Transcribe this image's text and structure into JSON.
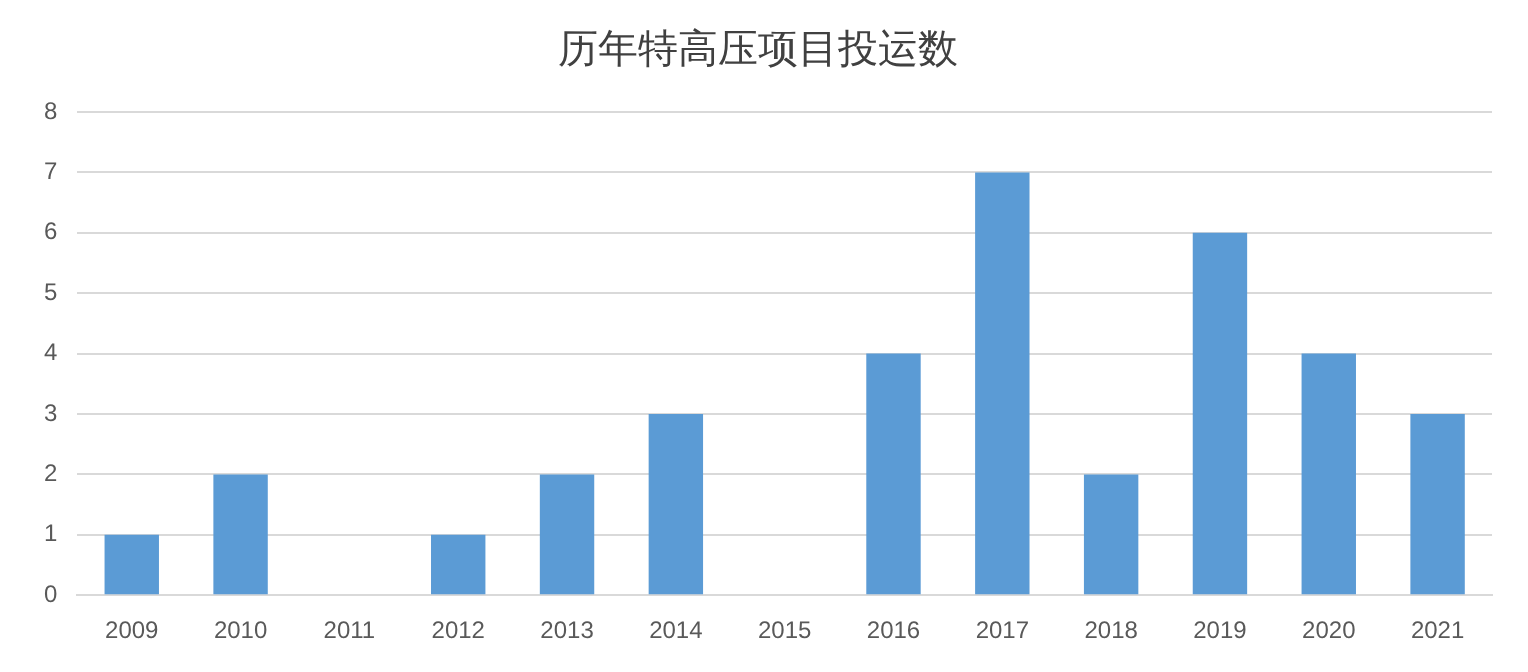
{
  "chart_data": {
    "type": "bar",
    "title": "历年特高压项目投运数",
    "categories": [
      "2009",
      "2010",
      "2011",
      "2012",
      "2013",
      "2014",
      "2015",
      "2016",
      "2017",
      "2018",
      "2019",
      "2020",
      "2021"
    ],
    "values": [
      1,
      2,
      0,
      1,
      2,
      3,
      0,
      4,
      7,
      2,
      6,
      4,
      3
    ],
    "color": "#5b9bd5",
    "ylim": [
      0,
      8
    ],
    "yticks": [
      0,
      1,
      2,
      3,
      4,
      5,
      6,
      7,
      8
    ],
    "grid": "y",
    "legend": false
  }
}
